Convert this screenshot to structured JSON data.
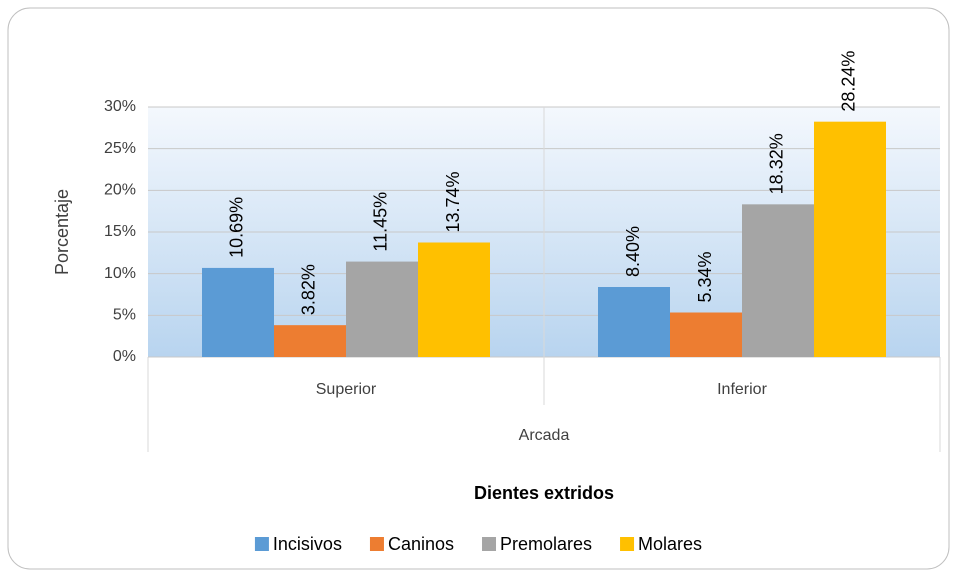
{
  "chart_data": {
    "type": "bar",
    "y_label": "Porcentaje",
    "x_label": "Arcada",
    "legend_title": "Dientes extridos",
    "categories": [
      "Superior",
      "Inferior"
    ],
    "series": [
      {
        "name": "Incisivos",
        "color": "#5b9bd5",
        "values": [
          10.69,
          8.4
        ],
        "value_labels": [
          "10.69%",
          "8.40%"
        ]
      },
      {
        "name": "Caninos",
        "color": "#ed7d31",
        "values": [
          3.82,
          5.34
        ],
        "value_labels": [
          "3.82%",
          "5.34%"
        ]
      },
      {
        "name": "Premolares",
        "color": "#a5a5a5",
        "values": [
          11.45,
          18.32
        ],
        "value_labels": [
          "11.45%",
          "18.32%"
        ]
      },
      {
        "name": "Molares",
        "color": "#ffc000",
        "values": [
          13.74,
          28.24
        ],
        "value_labels": [
          "13.74%",
          "28.24%"
        ]
      }
    ],
    "ylim": [
      0,
      30
    ],
    "yticks": [
      {
        "value": 0,
        "label": "0%"
      },
      {
        "value": 5,
        "label": "5%"
      },
      {
        "value": 10,
        "label": "10%"
      },
      {
        "value": 15,
        "label": "15%"
      },
      {
        "value": 20,
        "label": "20%"
      },
      {
        "value": 25,
        "label": "25%"
      },
      {
        "value": 30,
        "label": "30%"
      }
    ],
    "grid": true,
    "legend": "bottom"
  }
}
